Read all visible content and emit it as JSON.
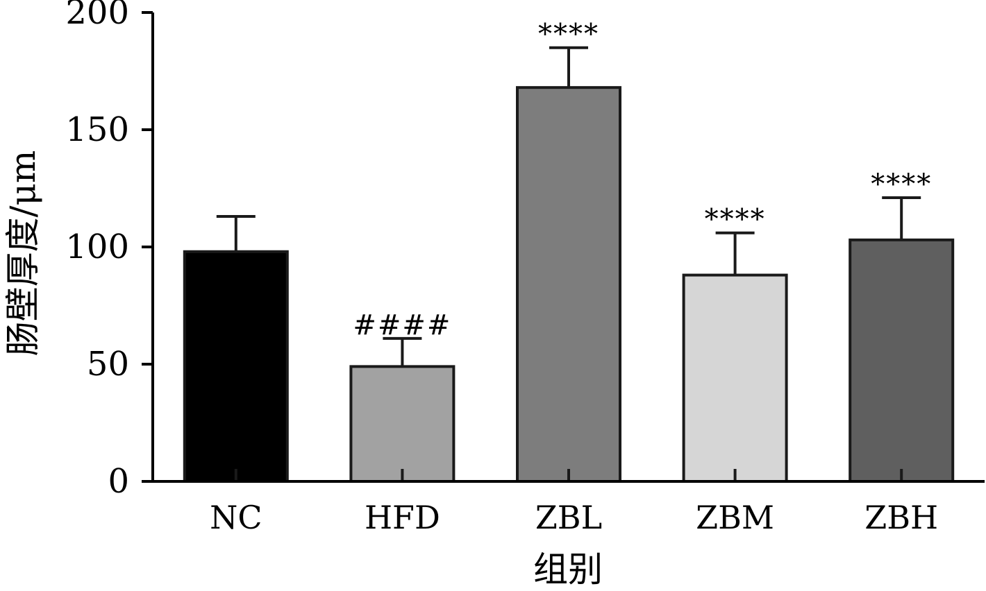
{
  "chart_data": {
    "type": "bar",
    "title": "",
    "xlabel": "组别",
    "ylabel": "肠壁厚度/μm",
    "ylim": [
      0,
      200
    ],
    "yticks": [
      0,
      50,
      100,
      150,
      200
    ],
    "grid": false,
    "legend": "none",
    "categories": [
      "NC",
      "HFD",
      "ZBL",
      "ZBM",
      "ZBH"
    ],
    "values": [
      98,
      49,
      168,
      88,
      103
    ],
    "errors": [
      15,
      12,
      17,
      18,
      18
    ],
    "significance": [
      "",
      "####",
      "****",
      "****",
      "****"
    ],
    "colors": [
      "#000000",
      "#a2a2a2",
      "#7d7d7d",
      "#d6d6d6",
      "#5f5f5f"
    ]
  }
}
